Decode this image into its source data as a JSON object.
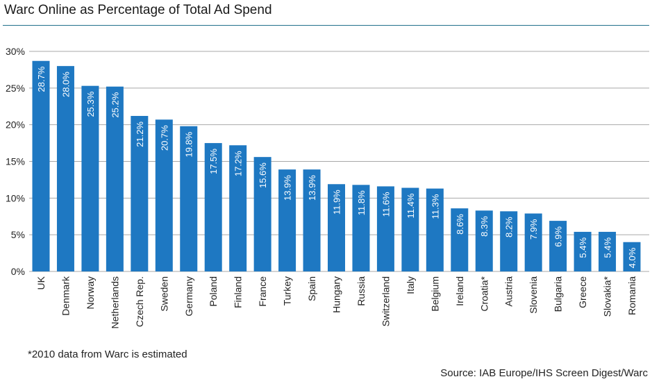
{
  "chart_data": {
    "type": "bar",
    "title": "Warc Online as Percentage of Total Ad Spend",
    "xlabel": "",
    "ylabel": "",
    "categories": [
      "UK",
      "Denmark",
      "Norway",
      "Netherlands",
      "Czech Rep.",
      "Sweden",
      "Germany",
      "Poland",
      "Finland",
      "France",
      "Turkey",
      "Spain",
      "Hungary",
      "Russia",
      "Switzerland",
      "Italy",
      "Belgium",
      "Ireland",
      "Croatia*",
      "Austria",
      "Slovenia",
      "Bulgaria",
      "Greece",
      "Slovakia*",
      "Romania"
    ],
    "values": [
      28.7,
      28.0,
      25.3,
      25.2,
      21.2,
      20.7,
      19.8,
      17.5,
      17.2,
      15.6,
      13.9,
      13.9,
      11.9,
      11.8,
      11.6,
      11.4,
      11.3,
      8.6,
      8.3,
      8.2,
      7.9,
      6.9,
      5.4,
      5.4,
      4.0
    ],
    "data_labels": [
      "28.7%",
      "28.0%",
      "25.3%",
      "25.2%",
      "21.2%",
      "20.7%",
      "19.8%",
      "17.5%",
      "17.2%",
      "15.6%",
      "13.9%",
      "13.9%",
      "11.9%",
      "11.8%",
      "11.6%",
      "11.4%",
      "11.3%",
      "8.6%",
      "8.3%",
      "8.2%",
      "7.9%",
      "6.9%",
      "5.4%",
      "5.4%",
      "4.0%"
    ],
    "y_ticks": [
      "0%",
      "5%",
      "10%",
      "15%",
      "20%",
      "25%",
      "30%"
    ],
    "ylim": [
      0,
      30
    ],
    "grid": true,
    "bar_color": "#1e78c2",
    "grid_color": "#a8a8a8",
    "label_color": "#ffffff"
  },
  "footnote": "*2010 data from Warc is estimated",
  "source": "Source: IAB Europe/IHS Screen Digest/Warc"
}
